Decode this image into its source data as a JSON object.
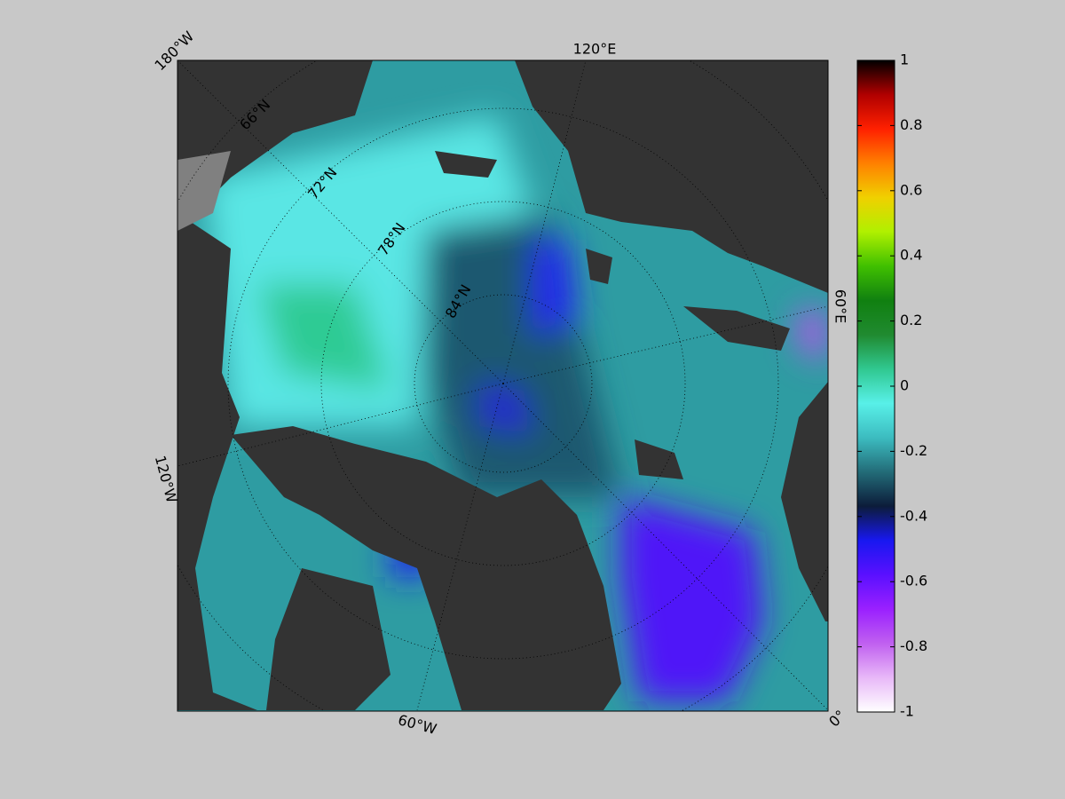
{
  "map": {
    "lon_labels": [
      "180°W",
      "120°E",
      "60°E",
      "0°",
      "60°W",
      "120°W"
    ],
    "lat_labels": [
      "66°N",
      "72°N",
      "78°N",
      "84°N"
    ]
  },
  "colorbar": {
    "lim": [
      -1,
      1
    ],
    "ticks": [
      -1,
      -0.8,
      -0.6,
      -0.4,
      -0.2,
      0,
      0.2,
      0.4,
      0.6,
      0.8,
      1
    ],
    "colors": [
      "#ffffff",
      "#e8b8f8",
      "#c060f0",
      "#9a20ff",
      "#5a10ff",
      "#1818f0",
      "#0c1c3a",
      "#236c78",
      "#3cbcc0",
      "#58f0e8",
      "#30c890",
      "#208a30",
      "#108010",
      "#40c000",
      "#b0f000",
      "#f0d000",
      "#ff8000",
      "#ff2000",
      "#b00000",
      "#000000"
    ]
  }
}
